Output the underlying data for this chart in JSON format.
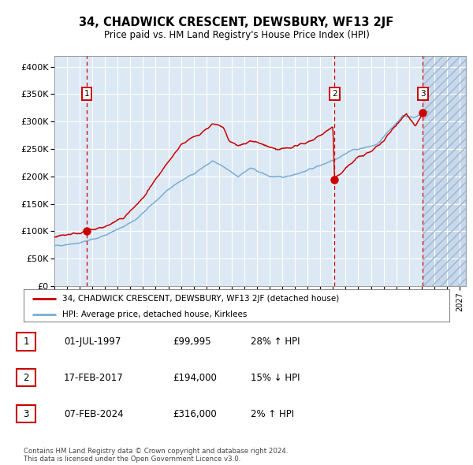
{
  "title": "34, CHADWICK CRESCENT, DEWSBURY, WF13 2JF",
  "subtitle": "Price paid vs. HM Land Registry's House Price Index (HPI)",
  "bg_color": "#dce9f5",
  "hatch_color": "#c8d8ea",
  "red_line_color": "#cc0000",
  "blue_line_color": "#7aadd4",
  "marker_color": "#cc0000",
  "vline_color": "#cc0000",
  "box_edge_color": "#cc0000",
  "grid_color": "#ffffff",
  "ylim": [
    0,
    420000
  ],
  "yticks": [
    0,
    50000,
    100000,
    150000,
    200000,
    250000,
    300000,
    350000,
    400000
  ],
  "ytick_labels": [
    "£0",
    "£50K",
    "£100K",
    "£150K",
    "£200K",
    "£250K",
    "£300K",
    "£350K",
    "£400K"
  ],
  "xmin_year": 1995.0,
  "xmax_year": 2027.5,
  "xticks": [
    1995,
    1996,
    1997,
    1998,
    1999,
    2000,
    2001,
    2002,
    2003,
    2004,
    2005,
    2006,
    2007,
    2008,
    2009,
    2010,
    2011,
    2012,
    2013,
    2014,
    2015,
    2016,
    2017,
    2018,
    2019,
    2020,
    2021,
    2022,
    2023,
    2024,
    2025,
    2026,
    2027
  ],
  "sale1_x": 1997.54,
  "sale1_y": 99995,
  "sale1_label": "1",
  "sale2_x": 2017.12,
  "sale2_y": 194000,
  "sale2_label": "2",
  "sale3_x": 2024.1,
  "sale3_y": 316000,
  "sale3_label": "3",
  "future_cutoff": 2024.1,
  "legend_line1": "34, CHADWICK CRESCENT, DEWSBURY, WF13 2JF (detached house)",
  "legend_line2": "HPI: Average price, detached house, Kirklees",
  "table_rows": [
    [
      "1",
      "01-JUL-1997",
      "£99,995",
      "28%",
      "↑",
      "HPI"
    ],
    [
      "2",
      "17-FEB-2017",
      "£194,000",
      "15%",
      "↓",
      "HPI"
    ],
    [
      "3",
      "07-FEB-2024",
      "£316,000",
      "2%",
      "↑",
      "HPI"
    ]
  ],
  "footer_text": "Contains HM Land Registry data © Crown copyright and database right 2024.\nThis data is licensed under the Open Government Licence v3.0."
}
